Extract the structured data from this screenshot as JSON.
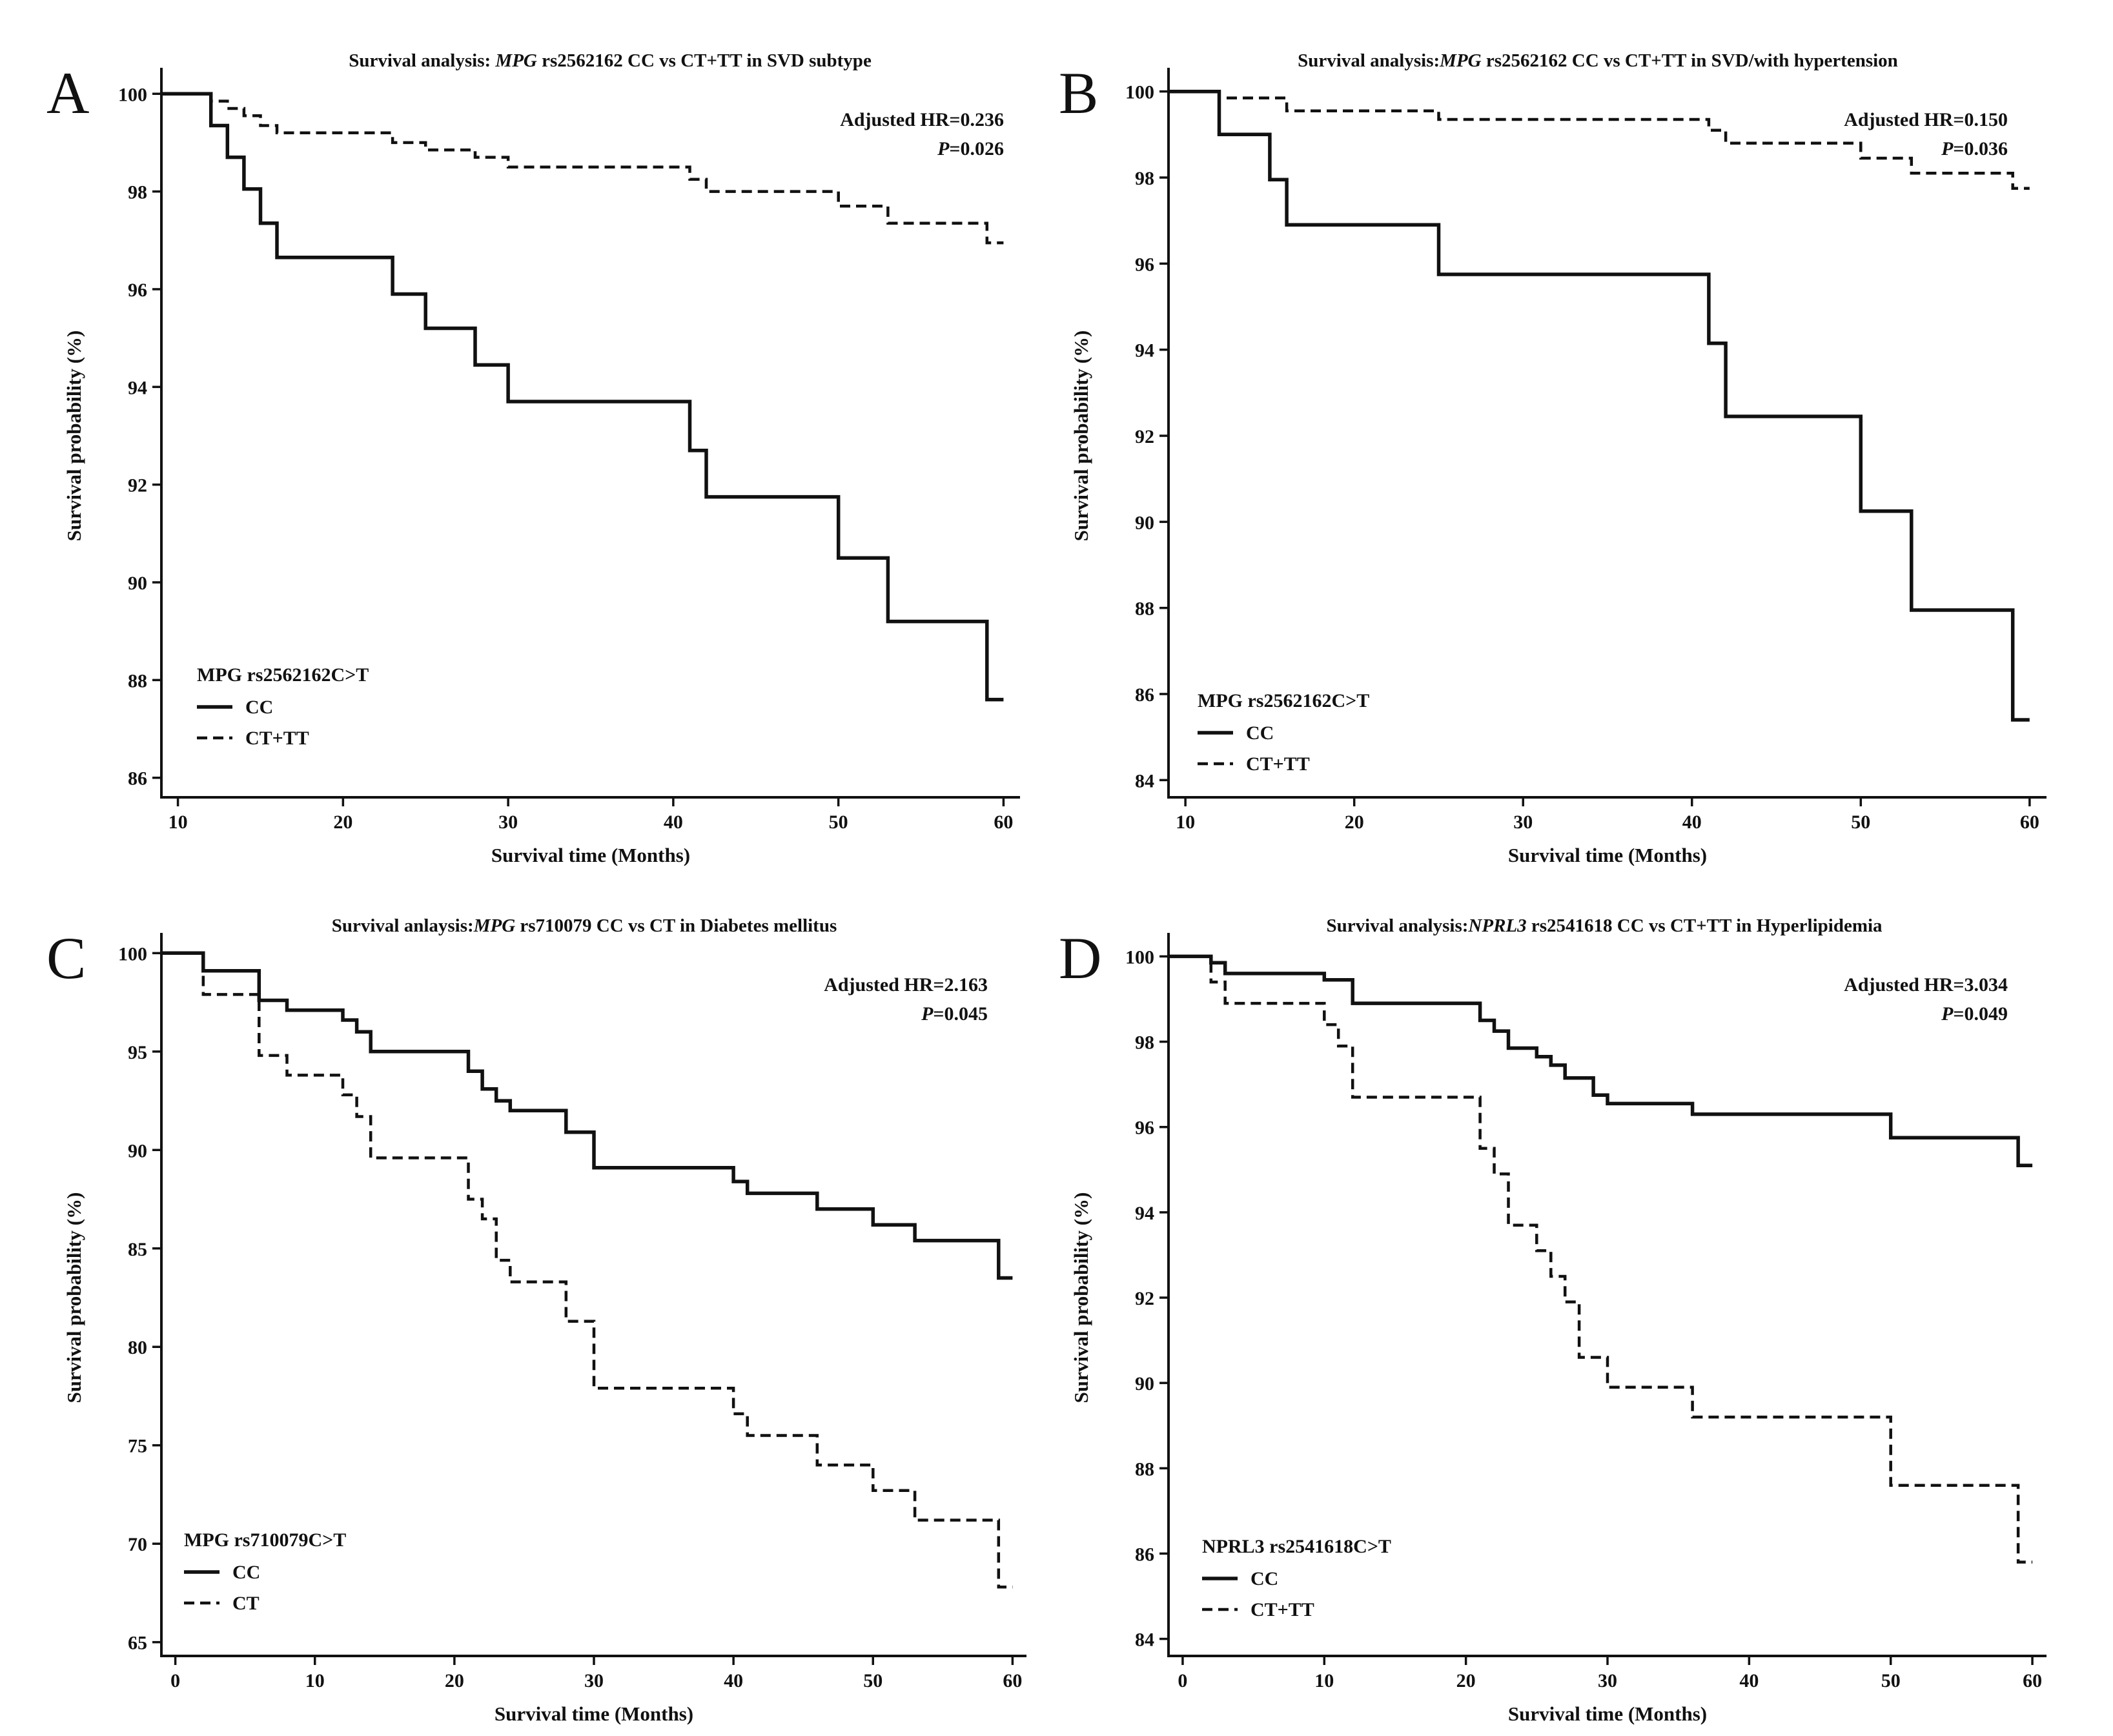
{
  "chart_data": [
    {
      "panel": "A",
      "type": "line",
      "title_parts": [
        "Survival analysis: ",
        "MPG",
        " rs2562162 CC vs CT+TT in SVD subtype"
      ],
      "xlabel": "Survival time (Months)",
      "ylabel": "Survival probability (%)",
      "xlim": [
        9,
        61
      ],
      "ylim": [
        85.6,
        100.4
      ],
      "xticks": [
        10,
        20,
        30,
        40,
        50,
        60
      ],
      "yticks": [
        86,
        88,
        90,
        92,
        94,
        96,
        98,
        100
      ],
      "grid": false,
      "hr_text": "Adjusted HR=0.236",
      "p_label": "P",
      "p_value": "=0.026",
      "legend_position": "bottom-left",
      "legend_title": "MPG rs2562162C>T",
      "series": [
        {
          "name": "CC",
          "style": "solid",
          "x": [
            9,
            12,
            13,
            14,
            15,
            16,
            23,
            25,
            28,
            30,
            41,
            42,
            50,
            53,
            59,
            60
          ],
          "y": [
            100,
            99.35,
            98.7,
            98.05,
            97.35,
            96.65,
            95.9,
            95.2,
            94.45,
            93.7,
            92.7,
            91.75,
            90.5,
            89.2,
            87.6,
            87.6
          ]
        },
        {
          "name": "CT+TT",
          "style": "dashed",
          "x": [
            9,
            12,
            13,
            14,
            15,
            16,
            23,
            25,
            28,
            30,
            41,
            42,
            50,
            53,
            59,
            60
          ],
          "y": [
            100,
            99.85,
            99.7,
            99.55,
            99.35,
            99.2,
            99.0,
            98.85,
            98.7,
            98.5,
            98.25,
            98.0,
            97.7,
            97.35,
            96.95,
            96.95
          ]
        }
      ]
    },
    {
      "panel": "B",
      "type": "line",
      "title_parts": [
        "Survival analysis:",
        "MPG",
        " rs2562162 CC vs CT+TT in SVD/with hypertension"
      ],
      "xlabel": "Survival time (Months)",
      "ylabel": "Survival probability (%)",
      "xlim": [
        9,
        61
      ],
      "ylim": [
        83.6,
        100.4
      ],
      "xticks": [
        10,
        20,
        30,
        40,
        50,
        60
      ],
      "yticks": [
        84,
        86,
        88,
        90,
        92,
        94,
        96,
        98,
        100
      ],
      "grid": false,
      "hr_text": "Adjusted HR=0.150",
      "p_label": "P",
      "p_value": "=0.036",
      "legend_position": "bottom-left",
      "legend_title": "MPG rs2562162C>T",
      "series": [
        {
          "name": "CC",
          "style": "solid",
          "x": [
            9,
            12,
            15,
            16,
            25,
            41,
            42,
            50,
            53,
            59,
            60
          ],
          "y": [
            100,
            99.0,
            97.95,
            96.9,
            95.75,
            94.15,
            92.45,
            90.25,
            87.95,
            85.4,
            85.4
          ]
        },
        {
          "name": "CT+TT",
          "style": "dashed",
          "x": [
            9,
            12,
            16,
            25,
            41,
            42,
            50,
            53,
            59,
            60
          ],
          "y": [
            100,
            99.85,
            99.55,
            99.35,
            99.1,
            98.8,
            98.45,
            98.1,
            97.75,
            97.75
          ]
        }
      ]
    },
    {
      "panel": "C",
      "type": "line",
      "title_parts": [
        "Survival anlaysis:",
        "MPG",
        " rs710079 CC vs CT in Diabetes mellitus"
      ],
      "xlabel": "Survival time (Months)",
      "ylabel": "Survival probability (%)",
      "xlim": [
        -1,
        61
      ],
      "ylim": [
        64.3,
        100.7
      ],
      "xticks": [
        0,
        10,
        20,
        30,
        40,
        50,
        60
      ],
      "yticks": [
        65,
        70,
        75,
        80,
        85,
        90,
        95,
        100
      ],
      "grid": false,
      "hr_text": "Adjusted HR=2.163",
      "p_label": "P",
      "p_value": "=0.045",
      "legend_position": "bottom-left",
      "legend_title": "MPG rs710079C>T",
      "series": [
        {
          "name": "CC",
          "style": "solid",
          "x": [
            -1,
            2,
            6,
            8,
            12,
            13,
            14,
            21,
            22,
            23,
            24,
            28,
            30,
            40,
            41,
            46,
            50,
            53,
            59,
            60
          ],
          "y": [
            100,
            99.1,
            97.6,
            97.1,
            96.6,
            96.0,
            95.0,
            94.0,
            93.1,
            92.5,
            92.0,
            90.9,
            89.1,
            88.4,
            87.8,
            87.0,
            86.2,
            85.4,
            83.5,
            83.5
          ]
        },
        {
          "name": "CT",
          "style": "dashed",
          "x": [
            -1,
            2,
            6,
            8,
            12,
            13,
            14,
            21,
            22,
            23,
            24,
            28,
            30,
            40,
            41,
            46,
            50,
            53,
            59,
            60
          ],
          "y": [
            100,
            97.9,
            94.8,
            93.8,
            92.8,
            91.7,
            89.6,
            87.5,
            86.5,
            84.4,
            83.3,
            81.3,
            77.9,
            76.6,
            75.5,
            74.0,
            72.7,
            71.2,
            67.8,
            67.8
          ]
        }
      ]
    },
    {
      "panel": "D",
      "type": "line",
      "title_parts": [
        "Survival analysis:",
        "NPRL3",
        " rs2541618 CC vs CT+TT in Hyperlipidemia"
      ],
      "xlabel": "Survival time (Months)",
      "ylabel": "Survival probability (%)",
      "xlim": [
        -1,
        61
      ],
      "ylim": [
        83.6,
        100.4
      ],
      "xticks": [
        0,
        10,
        20,
        30,
        40,
        50,
        60
      ],
      "yticks": [
        84,
        86,
        88,
        90,
        92,
        94,
        96,
        98,
        100
      ],
      "grid": false,
      "hr_text": "Adjusted HR=3.034",
      "p_label": "P",
      "p_value": "=0.049",
      "legend_position": "bottom-left",
      "legend_title": "NPRL3 rs2541618C>T",
      "series": [
        {
          "name": "CC",
          "style": "solid",
          "x": [
            -1,
            2,
            3,
            10,
            12,
            21,
            22,
            23,
            25,
            26,
            27,
            29,
            30,
            36,
            50,
            59,
            60
          ],
          "y": [
            100,
            99.85,
            99.6,
            99.45,
            98.9,
            98.5,
            98.25,
            97.85,
            97.65,
            97.45,
            97.15,
            96.75,
            96.55,
            96.3,
            95.75,
            95.1,
            95.1
          ]
        },
        {
          "name": "CT+TT",
          "style": "dashed",
          "x": [
            -1,
            2,
            3,
            10,
            11,
            12,
            21,
            22,
            23,
            25,
            26,
            27,
            28,
            30,
            36,
            50,
            59,
            60
          ],
          "y": [
            100,
            99.4,
            98.9,
            98.4,
            97.9,
            96.7,
            95.5,
            94.9,
            93.7,
            93.1,
            92.5,
            91.9,
            90.6,
            89.9,
            89.2,
            87.6,
            85.8,
            85.8
          ]
        }
      ]
    }
  ]
}
